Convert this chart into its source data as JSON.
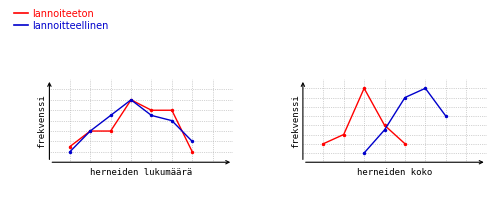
{
  "legend_labels": [
    "lannoiteeton",
    "lannoitteellinen"
  ],
  "legend_colors": [
    "#ff0000",
    "#0000cc"
  ],
  "left_chart": {
    "xlabel": "herneiden lukumäärä",
    "ylabel": "frekvenssi",
    "red_x": [
      1,
      2,
      3,
      4,
      5,
      6,
      7,
      8
    ],
    "red_y": [
      1.5,
      3,
      3,
      6,
      5,
      5,
      1,
      null
    ],
    "blue_x": [
      1,
      2,
      3,
      4,
      5,
      6,
      7,
      8
    ],
    "blue_y": [
      1,
      3,
      4.5,
      6,
      4.5,
      4,
      2,
      null
    ]
  },
  "right_chart": {
    "xlabel": "herneiden koko",
    "ylabel": "frekvenssi",
    "red_x": [
      1,
      2,
      3,
      4,
      5
    ],
    "red_y": [
      2,
      3,
      8,
      4,
      2
    ],
    "blue_x": [
      3,
      4,
      5,
      6,
      7
    ],
    "blue_y": [
      1,
      3.5,
      7,
      8,
      5
    ]
  },
  "grid_color": "#aaaaaa",
  "bg_color": "#ffffff",
  "label_fontsize": 6.5,
  "legend_fontsize": 7
}
